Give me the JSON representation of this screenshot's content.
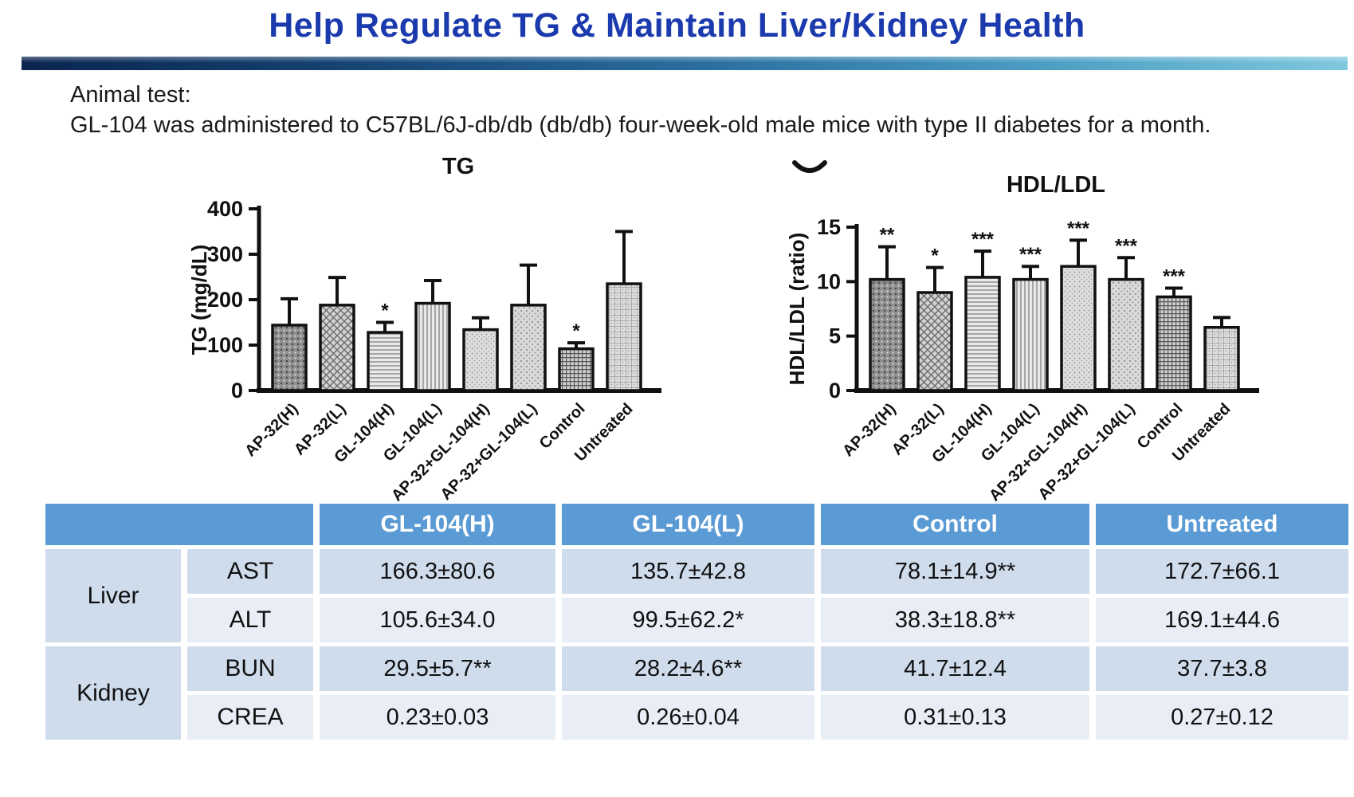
{
  "header": {
    "title": "Help Regulate TG & Maintain Liver/Kidney Health"
  },
  "intro": {
    "line1": "Animal test:",
    "line2": "GL-104 was administered to C57BL/6J-db/db (db/db) four-week-old male mice with type II diabetes for a month."
  },
  "colors": {
    "title-blue": "#1b3aad",
    "divider-left": "#0a2550",
    "divider-mid": "#2a6fa0",
    "divider-right": "#7fc8de",
    "table-header-blue": "#5b9bd5",
    "row-dark": "#cfdcec",
    "row-light": "#e9eef6"
  },
  "chart_data": [
    {
      "type": "bar",
      "title": "TG",
      "ylabel": "TG (mg/dL)",
      "ylim": [
        0,
        400
      ],
      "yticks": [
        0,
        100,
        200,
        300,
        400
      ],
      "grid": false,
      "categories": [
        "AP-32(H)",
        "AP-32(L)",
        "GL-104(H)",
        "GL-104(L)",
        "AP-32+GL-104(H)",
        "AP-32+GL-104(L)",
        "Control",
        "Untreated"
      ],
      "values": [
        144,
        188,
        128,
        192,
        134,
        188,
        92,
        235
      ],
      "errors": [
        58,
        61,
        22,
        50,
        26,
        88,
        13,
        115
      ],
      "sig": [
        "",
        "",
        "*",
        "",
        "",
        "",
        "*",
        ""
      ],
      "bar_patterns": [
        "dark-speckle",
        "diamond-weave",
        "horizontal-lines",
        "vertical-lines",
        "fine-stipple",
        "fine-stipple-2",
        "crosshatch-grid",
        "light-grid"
      ]
    },
    {
      "type": "bar",
      "title": "HDL/LDL",
      "ylabel": "HDL/LDL (ratio)",
      "ylim": [
        0,
        15
      ],
      "yticks": [
        0,
        5,
        10,
        15
      ],
      "grid": false,
      "categories": [
        "AP-32(H)",
        "AP-32(L)",
        "GL-104(H)",
        "GL-104(L)",
        "AP-32+GL-104(H)",
        "AP-32+GL-104(L)",
        "Control",
        "Untreated"
      ],
      "values": [
        10.2,
        9.0,
        10.4,
        10.2,
        11.4,
        10.2,
        8.6,
        5.8
      ],
      "errors": [
        3.0,
        2.3,
        2.4,
        1.2,
        2.4,
        2.0,
        0.8,
        0.9
      ],
      "sig": [
        "**",
        "*",
        "***",
        "***",
        "***",
        "***",
        "***",
        ""
      ],
      "bar_patterns": [
        "dark-speckle",
        "diamond-weave",
        "horizontal-lines",
        "vertical-lines",
        "fine-stipple",
        "fine-stipple-2",
        "crosshatch-grid",
        "light-grid"
      ]
    }
  ],
  "table": {
    "header": {
      "blank": "",
      "col1": "GL-104(H)",
      "col2": "GL-104(L)",
      "col3": "Control",
      "col4": "Untreated"
    },
    "groups": [
      {
        "label": "Liver",
        "rows": [
          {
            "name": "AST",
            "values": [
              "166.3±80.6",
              "135.7±42.8",
              "78.1±14.9**",
              "172.7±66.1"
            ]
          },
          {
            "name": "ALT",
            "values": [
              "105.6±34.0",
              "99.5±62.2*",
              "38.3±18.8**",
              "169.1±44.6"
            ]
          }
        ]
      },
      {
        "label": "Kidney",
        "rows": [
          {
            "name": "BUN",
            "values": [
              "29.5±5.7**",
              "28.2±4.6**",
              "41.7±12.4",
              "37.7±3.8"
            ]
          },
          {
            "name": "CREA",
            "values": [
              "0.23±0.03",
              "0.26±0.04",
              "0.31±0.13",
              "0.27±0.12"
            ]
          }
        ]
      }
    ]
  }
}
